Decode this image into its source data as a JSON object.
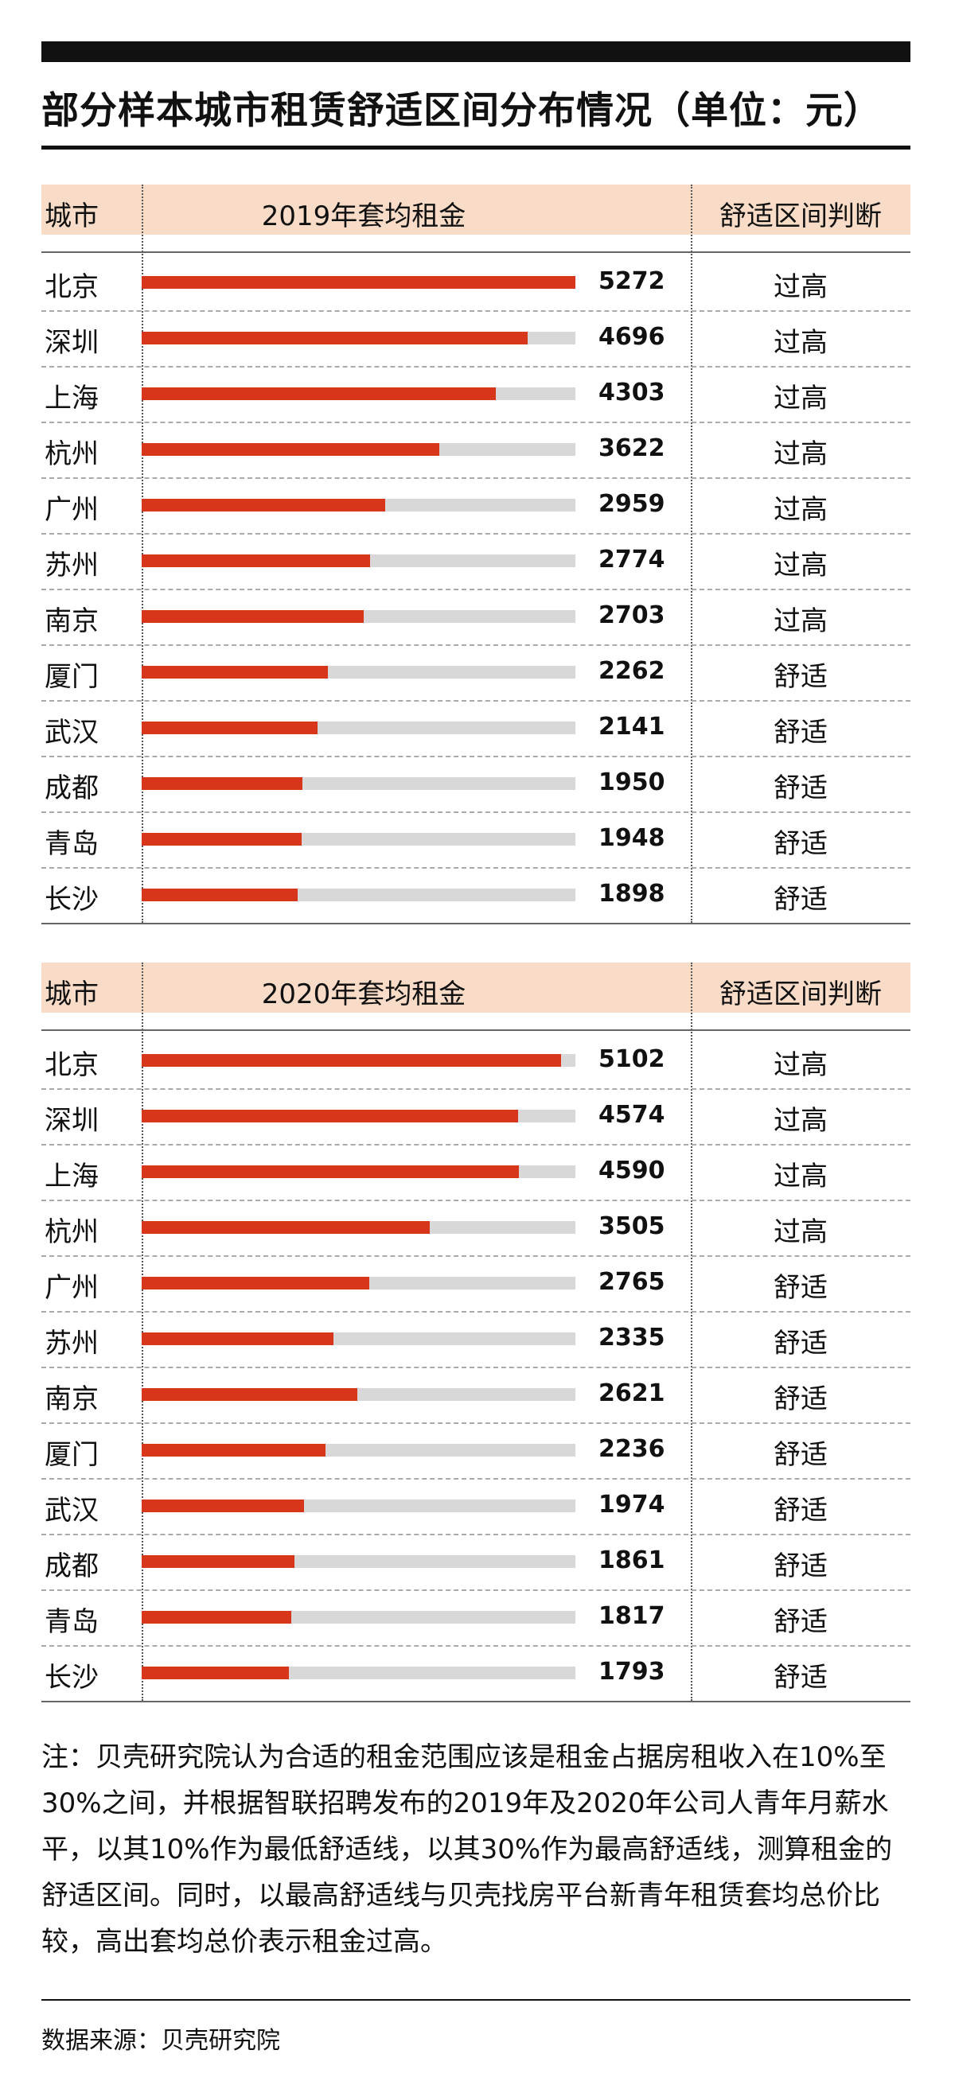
{
  "title": "部分样本城市租赁舒适区间分布情况（单位：元）",
  "chart_data": [
    {
      "type": "bar",
      "header": {
        "city": "城市",
        "metric": "2019年套均租金",
        "judgement": "舒适区间判断"
      },
      "categories": [
        "北京",
        "深圳",
        "上海",
        "杭州",
        "广州",
        "苏州",
        "南京",
        "厦门",
        "武汉",
        "成都",
        "青岛",
        "长沙"
      ],
      "values": [
        5272,
        4696,
        4303,
        3622,
        2959,
        2774,
        2703,
        2262,
        2141,
        1950,
        1948,
        1898
      ],
      "judgements": [
        "过高",
        "过高",
        "过高",
        "过高",
        "过高",
        "过高",
        "过高",
        "舒适",
        "舒适",
        "舒适",
        "舒适",
        "舒适"
      ],
      "xlim": [
        0,
        5272
      ],
      "colors": {
        "bar": "#d7361b",
        "track": "#d8d8d8",
        "header_bg": "#f9dcc7"
      }
    },
    {
      "type": "bar",
      "header": {
        "city": "城市",
        "metric": "2020年套均租金",
        "judgement": "舒适区间判断"
      },
      "categories": [
        "北京",
        "深圳",
        "上海",
        "杭州",
        "广州",
        "苏州",
        "南京",
        "厦门",
        "武汉",
        "成都",
        "青岛",
        "长沙"
      ],
      "values": [
        5102,
        4574,
        4590,
        3505,
        2765,
        2335,
        2621,
        2236,
        1974,
        1861,
        1817,
        1793
      ],
      "judgements": [
        "过高",
        "过高",
        "过高",
        "过高",
        "舒适",
        "舒适",
        "舒适",
        "舒适",
        "舒适",
        "舒适",
        "舒适",
        "舒适"
      ],
      "xlim": [
        0,
        5272
      ],
      "colors": {
        "bar": "#d7361b",
        "track": "#d8d8d8",
        "header_bg": "#f9dcc7"
      }
    }
  ],
  "note": "注：贝壳研究院认为合适的租金范围应该是租金占据房租收入在10%至30%之间，并根据智联招聘发布的2019年及2020年公司人青年月薪水平，以其10%作为最低舒适线，以其30%作为最高舒适线，测算租金的舒适区间。同时，以最高舒适线与贝壳找房平台新青年租赁套均总价比较，高出套均总价表示租金过高。",
  "source": "数据来源：贝壳研究院"
}
